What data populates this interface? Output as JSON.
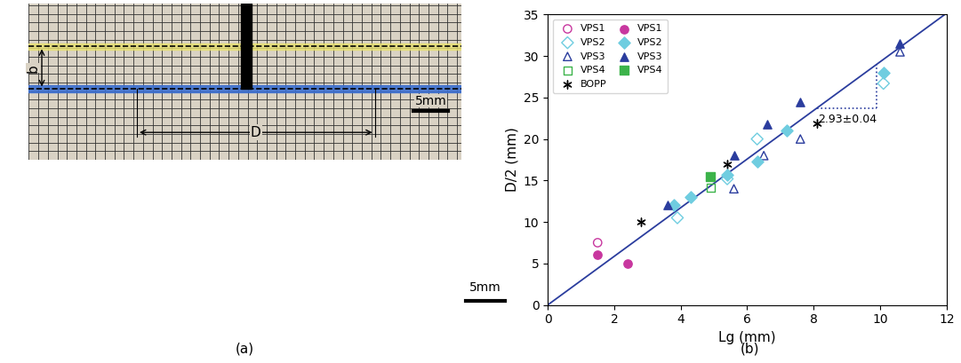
{
  "photo": {
    "caption": "(a)",
    "gap_label": "b",
    "width_label": "D",
    "scale_label": "5mm",
    "lower_scale_label": "5mm"
  },
  "chart_data": {
    "type": "scatter",
    "caption": "(b)",
    "x_label": "Lg (mm)",
    "y_label": "D/2 (mm)",
    "xlim": [
      0,
      12
    ],
    "ylim": [
      0,
      35
    ],
    "xticks": [
      0,
      2,
      4,
      6,
      8,
      10,
      12
    ],
    "yticks": [
      0,
      5,
      10,
      15,
      20,
      25,
      30,
      35
    ],
    "grid": false,
    "legend": "upper left",
    "series": [
      {
        "name": "VPS1",
        "color": "#c8379f",
        "marker": "open_circle",
        "x": [
          1.5
        ],
        "values": [
          7.5
        ]
      },
      {
        "name": "VPS2",
        "color": "#6fcde0",
        "marker": "open_diamond",
        "x": [
          3.9,
          5.4,
          6.3,
          10.1
        ],
        "values": [
          10.5,
          15.2,
          20.0,
          26.7
        ]
      },
      {
        "name": "VPS3",
        "color": "#2b3d9e",
        "marker": "open_triangle",
        "x": [
          5.6,
          6.5,
          7.6,
          10.6
        ],
        "values": [
          14.0,
          18.0,
          20.0,
          30.5
        ]
      },
      {
        "name": "VPS4",
        "color": "#3cb34a",
        "marker": "open_square",
        "x": [
          4.9
        ],
        "values": [
          14.1
        ]
      },
      {
        "name": "BOPP",
        "color": "#000000",
        "marker": "asterisk",
        "x": [
          2.8,
          5.4,
          8.1
        ],
        "values": [
          10.0,
          17.0,
          21.9
        ]
      },
      {
        "name": "VPS1",
        "color": "#c8379f",
        "marker": "circle",
        "x": [
          1.5,
          2.4
        ],
        "values": [
          6.0,
          5.0
        ]
      },
      {
        "name": "VPS2",
        "color": "#6fcde0",
        "marker": "diamond",
        "x": [
          3.8,
          4.3,
          5.4,
          6.3,
          7.2,
          10.1
        ],
        "values": [
          12.0,
          13.0,
          15.7,
          17.3,
          21.0,
          28.0
        ]
      },
      {
        "name": "VPS3",
        "color": "#2b3d9e",
        "marker": "triangle",
        "x": [
          3.6,
          5.6,
          6.6,
          7.6,
          10.6
        ],
        "values": [
          12.0,
          18.0,
          21.8,
          24.5,
          31.5
        ]
      },
      {
        "name": "VPS4",
        "color": "#3cb34a",
        "marker": "square",
        "x": [
          4.9
        ],
        "values": [
          15.5
        ]
      }
    ],
    "fit": {
      "slope": 2.93,
      "color": "#2b3d9e",
      "label": "2.93±0.04",
      "triangle_x": [
        8.1,
        9.9
      ],
      "triangle_y": [
        23.7,
        29.0
      ]
    }
  }
}
